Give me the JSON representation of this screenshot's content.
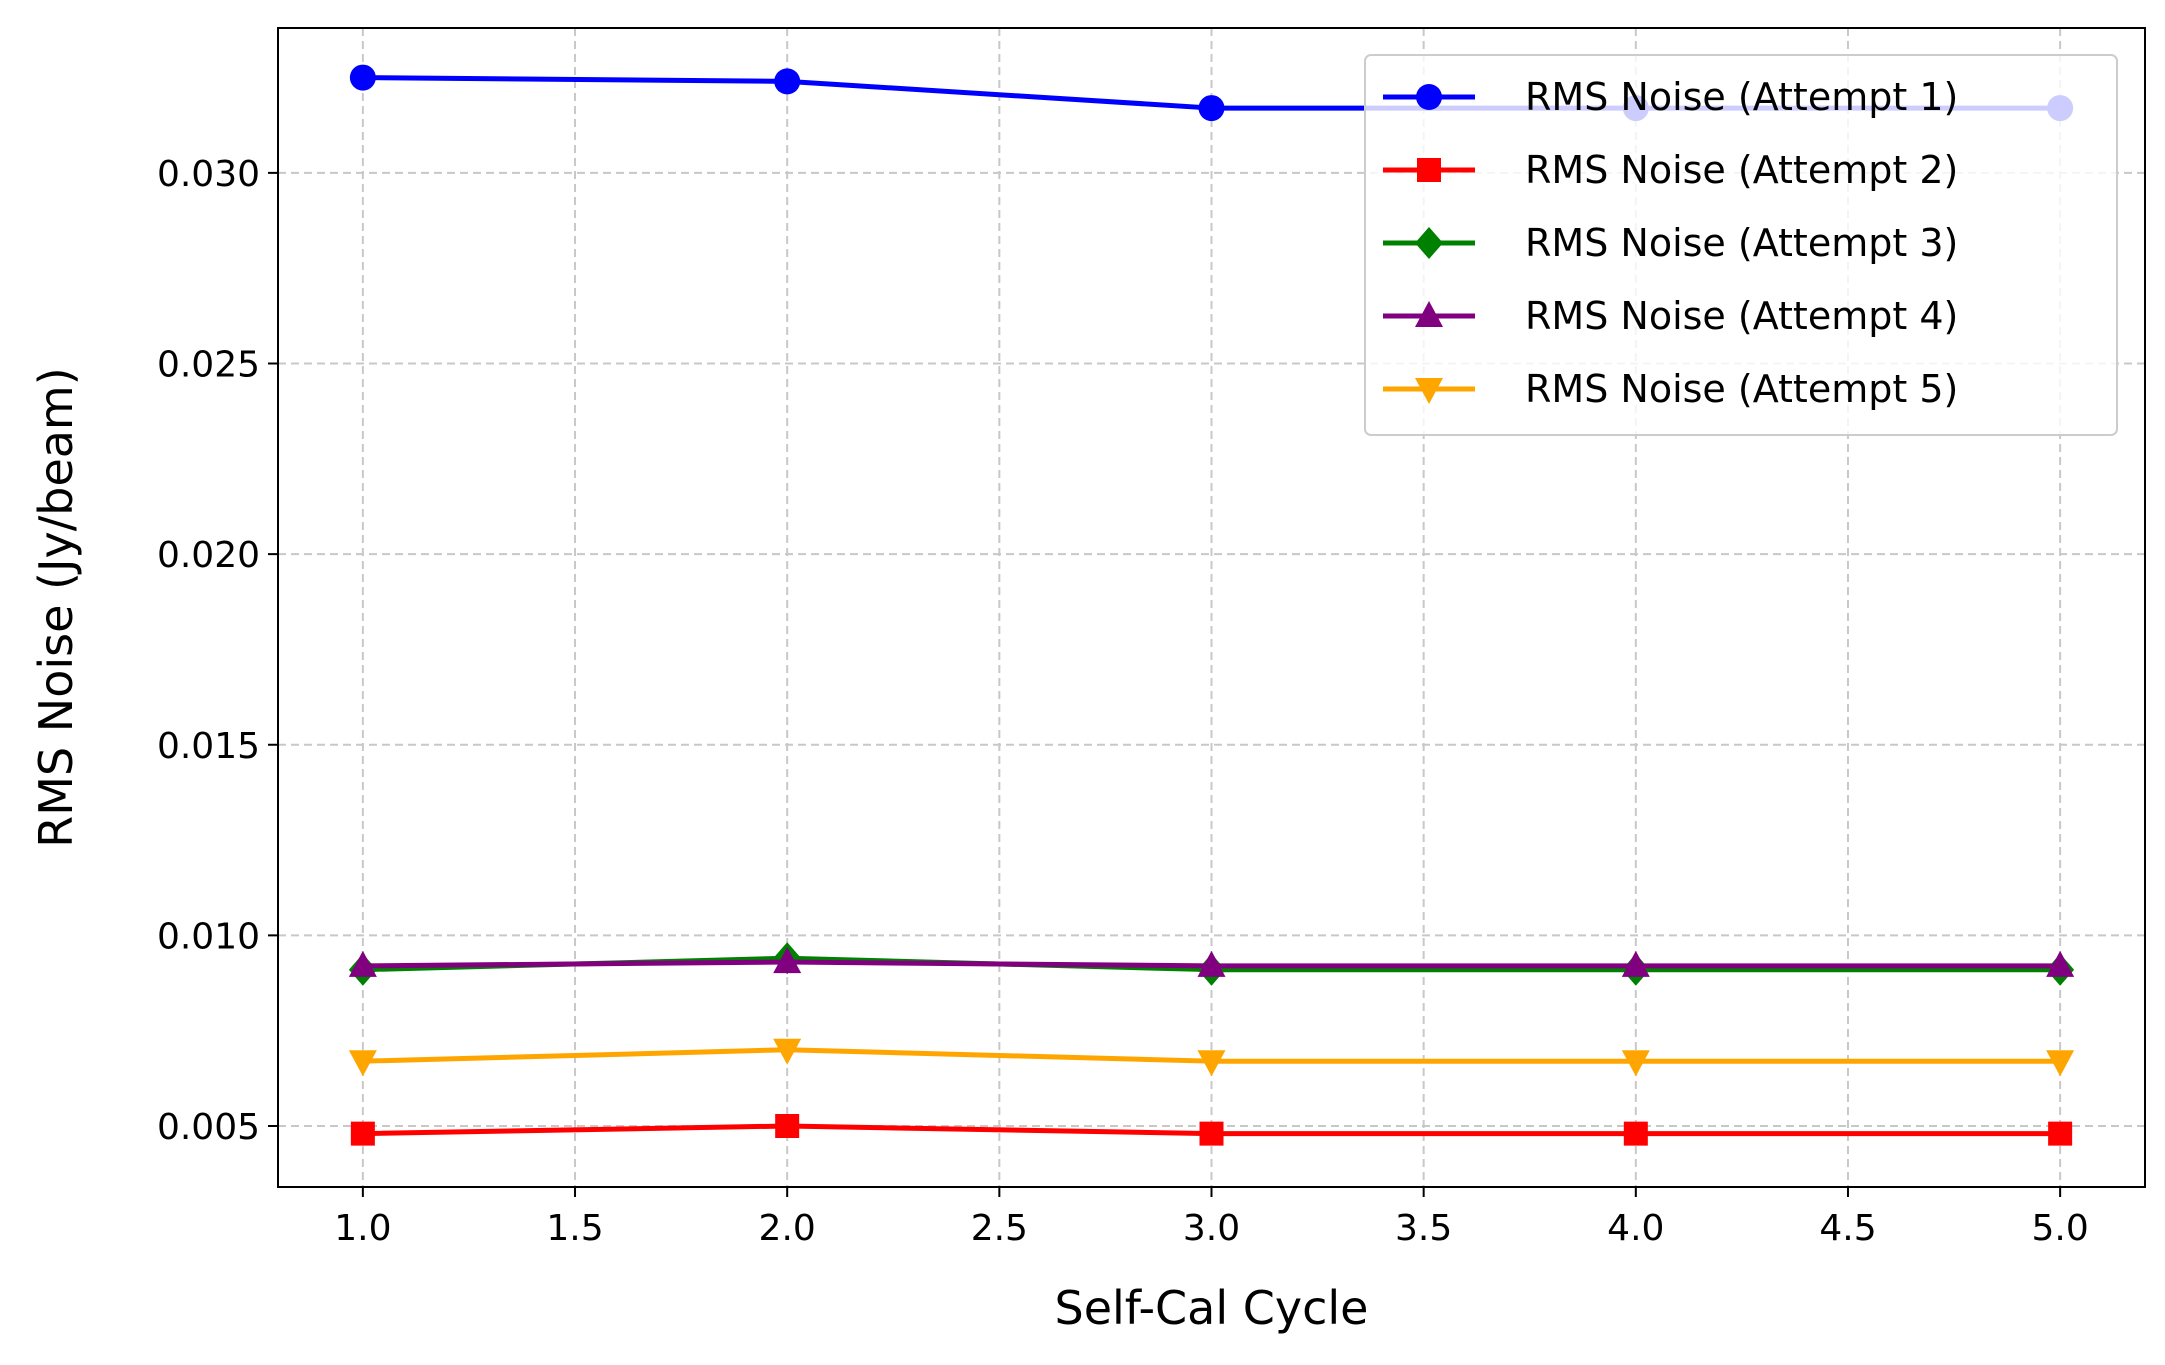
{
  "chart_data": {
    "type": "line",
    "title": "",
    "xlabel": "Self-Cal Cycle",
    "ylabel": "RMS Noise (Jy/beam)",
    "x": [
      1,
      2,
      3,
      4,
      5
    ],
    "xlim": [
      0.8,
      5.2
    ],
    "ylim": [
      0.0034,
      0.0338
    ],
    "xticks": [
      1.0,
      1.5,
      2.0,
      2.5,
      3.0,
      3.5,
      4.0,
      4.5,
      5.0
    ],
    "xtick_labels": [
      "1.0",
      "1.5",
      "2.0",
      "2.5",
      "3.0",
      "3.5",
      "4.0",
      "4.5",
      "5.0"
    ],
    "yticks": [
      0.005,
      0.01,
      0.015,
      0.02,
      0.025,
      0.03
    ],
    "ytick_labels": [
      "0.005",
      "0.010",
      "0.015",
      "0.020",
      "0.025",
      "0.030"
    ],
    "grid": true,
    "legend_position": "top-right",
    "series": [
      {
        "name": "RMS Noise (Attempt 1)",
        "color": "#0000ff",
        "marker": "circle",
        "values": [
          0.0325,
          0.0324,
          0.0317,
          0.0317,
          0.0317
        ]
      },
      {
        "name": "RMS Noise (Attempt 2)",
        "color": "#ff0000",
        "marker": "square",
        "values": [
          0.0048,
          0.005,
          0.0048,
          0.0048,
          0.0048
        ]
      },
      {
        "name": "RMS Noise (Attempt 3)",
        "color": "#008000",
        "marker": "diamond",
        "values": [
          0.0091,
          0.0094,
          0.0091,
          0.0091,
          0.0091
        ]
      },
      {
        "name": "RMS Noise (Attempt 4)",
        "color": "#800080",
        "marker": "triangle-up",
        "values": [
          0.0092,
          0.0093,
          0.0092,
          0.0092,
          0.0092
        ]
      },
      {
        "name": "RMS Noise (Attempt 5)",
        "color": "#ffa500",
        "marker": "triangle-down",
        "values": [
          0.0067,
          0.007,
          0.0067,
          0.0067,
          0.0067
        ]
      }
    ]
  }
}
